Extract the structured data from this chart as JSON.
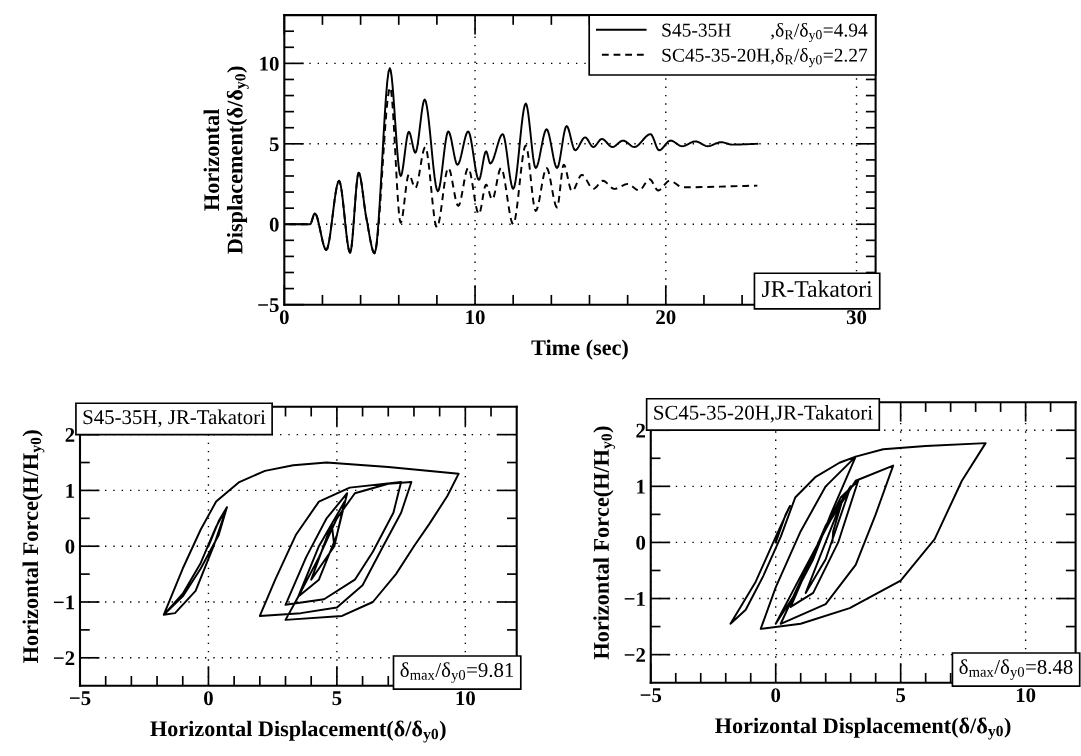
{
  "chart_data": [
    {
      "type": "line",
      "xlabel": "Time (sec)",
      "ylabel": "Horizontal\nDisplacement(δ/δ$_{y0}$)",
      "xlim": [
        0,
        31
      ],
      "ylim": [
        -5,
        13
      ],
      "xticks": [
        0,
        {
          "value": 2,
          "label": null
        },
        {
          "value": 4,
          "label": null
        },
        {
          "value": 6,
          "label": null
        },
        {
          "value": 8,
          "label": null
        },
        10,
        {
          "value": 12,
          "label": null
        },
        {
          "value": 14,
          "label": null
        },
        {
          "value": 16,
          "label": null
        },
        {
          "value": 18,
          "label": null
        },
        20,
        {
          "value": 22,
          "label": null
        },
        {
          "value": 24,
          "label": null
        },
        {
          "value": 26,
          "label": null
        },
        {
          "value": 28,
          "label": null
        },
        30
      ],
      "yticks": [
        -5,
        {
          "value": -4,
          "label": null
        },
        {
          "value": -3,
          "label": null
        },
        {
          "value": -2,
          "label": null
        },
        {
          "value": -1,
          "label": null
        },
        0,
        {
          "value": 1,
          "label": null
        },
        {
          "value": 2,
          "label": null
        },
        {
          "value": 3,
          "label": null
        },
        {
          "value": 4,
          "label": null
        },
        5,
        {
          "value": 6,
          "label": null
        },
        {
          "value": 7,
          "label": null
        },
        {
          "value": 8,
          "label": null
        },
        {
          "value": 9,
          "label": null
        },
        10,
        {
          "value": 11,
          "label": null
        },
        {
          "value": 12,
          "label": null
        }
      ],
      "grid": true,
      "legend": "top right",
      "annotations": [
        "JR-Takatori"
      ],
      "series": [
        {
          "name": "S45-35H        ,δ$_{R}$/δ$_{y0}$=4.94",
          "color": "#000000",
          "line_style": "solid",
          "x": [
            0,
            1.35,
            1.6,
            2.2,
            2.87,
            3.45,
            3.9,
            4.3,
            4.73,
            5.53,
            6.1,
            6.53,
            6.87,
            7.36,
            8.05,
            8.6,
            9.08,
            9.64,
            10.2,
            10.58,
            10.8,
            11.45,
            12.0,
            12.66,
            13.18,
            13.75,
            14.3,
            14.8,
            15.25,
            15.77,
            16.2,
            16.65,
            17.2,
            17.76,
            18.35,
            19.2,
            19.65,
            20.25,
            20.86,
            21.55,
            22.2,
            22.9,
            23.5,
            24.8
          ],
          "values": [
            0,
            0,
            0.67,
            -1.6,
            2.7,
            -1.77,
            3.2,
            0.4,
            -1.8,
            9.7,
            3.0,
            5.75,
            4.45,
            7.75,
            2.05,
            5.77,
            3.7,
            5.77,
            2.76,
            4.53,
            3.78,
            5.6,
            2.2,
            7.5,
            3.5,
            5.9,
            3.5,
            6.1,
            4.6,
            5.4,
            4.8,
            5.3,
            4.8,
            5.2,
            4.8,
            5.6,
            4.6,
            5.2,
            4.85,
            5.15,
            4.85,
            5.1,
            4.95,
            5.0
          ]
        },
        {
          "name": "SC45-35-20H,δ$_{R}$/δ$_{y0}$=2.27",
          "color": "#000000",
          "line_style": "dashed",
          "x": [
            0,
            1.35,
            1.6,
            2.2,
            2.87,
            3.45,
            3.9,
            4.3,
            4.73,
            5.55,
            6.1,
            6.53,
            6.87,
            7.39,
            8.0,
            8.6,
            9.12,
            9.64,
            10.2,
            10.58,
            10.9,
            11.36,
            12.0,
            12.66,
            13.18,
            13.75,
            14.3,
            14.65,
            15.08,
            15.6,
            16.2,
            16.7,
            17.3,
            18.0,
            18.6,
            19.15,
            19.6,
            20.2,
            20.9,
            24.8
          ],
          "values": [
            0,
            0,
            0.67,
            -1.6,
            2.7,
            -1.77,
            3.2,
            0.4,
            -1.8,
            8.5,
            0.1,
            3.1,
            2.25,
            4.8,
            -0.2,
            3.5,
            1.14,
            3.5,
            0.63,
            2.46,
            1.54,
            3.5,
            0,
            4.9,
            0.83,
            3.5,
            1.04,
            3.7,
            2.05,
            3.07,
            2.2,
            2.7,
            2.2,
            2.5,
            2.1,
            2.8,
            2.1,
            2.7,
            2.3,
            2.4
          ]
        }
      ]
    },
    {
      "type": "line",
      "xlabel": "Horizontal Displacement(δ/δ$_{y0}$)",
      "ylabel": "Horizontal Force(H/H$_{y0}$)",
      "xlim": [
        -5,
        12
      ],
      "ylim": [
        -2.5,
        2.5
      ],
      "xticks": [
        -5,
        {
          "value": -4,
          "label": null
        },
        {
          "value": -3,
          "label": null
        },
        {
          "value": -2,
          "label": null
        },
        {
          "value": -1,
          "label": null
        },
        0,
        {
          "value": 1,
          "label": null
        },
        {
          "value": 2,
          "label": null
        },
        {
          "value": 3,
          "label": null
        },
        {
          "value": 4,
          "label": null
        },
        5,
        {
          "value": 6,
          "label": null
        },
        {
          "value": 7,
          "label": null
        },
        {
          "value": 8,
          "label": null
        },
        {
          "value": 9,
          "label": null
        },
        10,
        {
          "value": 11,
          "label": null
        }
      ],
      "yticks": [
        -2,
        {
          "value": -1.5,
          "label": null
        },
        -1,
        {
          "value": -0.5,
          "label": null
        },
        0,
        {
          "value": 0.5,
          "label": null
        },
        1,
        {
          "value": 1.5,
          "label": null
        },
        2
      ],
      "grid": true,
      "annotations": [
        "S45-35H, JR-Takatori",
        "δ$_{max}$/δ$_{y0}$=9.81"
      ],
      "series": [
        {
          "color": "#000000",
          "x": [
            0,
            0.4,
            0.72,
            0.4,
            -0.3,
            -1.0,
            -1.74,
            -1.3,
            -0.5,
            0.2,
            0.72,
            0.3,
            -0.3,
            -1.0,
            -1.74,
            -1.0,
            -0.3,
            0.3,
            1.2,
            2.2,
            3.3,
            4.6,
            7.0,
            9.74,
            9.3,
            8.6,
            8.0,
            7.3,
            6.4,
            5.2,
            3.0,
            3.5,
            4.3,
            5.0,
            5.7,
            7.0,
            7.9,
            7.5,
            6.8,
            6.0,
            5.0,
            3.6,
            2.0,
            2.6,
            3.4,
            4.3,
            5.5,
            7.5,
            7.2,
            6.4,
            5.7,
            4.5,
            3.0,
            3.8,
            4.6,
            5.4,
            5.0,
            4.3,
            3.5,
            4.3,
            5.3,
            4.9,
            4.0,
            4.8,
            4.9
          ],
          "values": [
            0,
            0.45,
            0.7,
            0.2,
            -0.4,
            -0.9,
            -1.23,
            -1.2,
            -0.8,
            0,
            0.7,
            0.35,
            -0.3,
            -0.85,
            -1.23,
            -0.4,
            0.3,
            0.8,
            1.15,
            1.35,
            1.45,
            1.5,
            1.42,
            1.3,
            0.9,
            0.4,
            0,
            -0.5,
            -1.0,
            -1.25,
            -1.32,
            -0.9,
            -0.2,
            0.5,
            0.95,
            1.12,
            1.15,
            0.6,
            0,
            -0.7,
            -1.1,
            -1.2,
            -1.25,
            -0.6,
            0.2,
            0.8,
            1.05,
            1.15,
            0.6,
            -0.1,
            -0.6,
            -0.95,
            -1.05,
            -0.2,
            0.5,
            0.95,
            0.2,
            -0.6,
            -0.9,
            0,
            0.8,
            0,
            -0.6,
            0.4,
            0
          ]
        }
      ]
    },
    {
      "type": "line",
      "xlabel": "Horizontal Displacement(δ/δ$_{y0}$)",
      "ylabel": "Horizontal Force(H/H$_{y0}$)",
      "xlim": [
        -5,
        12
      ],
      "ylim": [
        -2.5,
        2.5
      ],
      "xticks": [
        -5,
        {
          "value": -4,
          "label": null
        },
        {
          "value": -3,
          "label": null
        },
        {
          "value": -2,
          "label": null
        },
        {
          "value": -1,
          "label": null
        },
        0,
        {
          "value": 1,
          "label": null
        },
        {
          "value": 2,
          "label": null
        },
        {
          "value": 3,
          "label": null
        },
        {
          "value": 4,
          "label": null
        },
        5,
        {
          "value": 6,
          "label": null
        },
        {
          "value": 7,
          "label": null
        },
        {
          "value": 8,
          "label": null
        },
        {
          "value": 9,
          "label": null
        },
        10,
        {
          "value": 11,
          "label": null
        }
      ],
      "yticks": [
        -2,
        {
          "value": -1.5,
          "label": null
        },
        -1,
        {
          "value": -0.5,
          "label": null
        },
        0,
        {
          "value": 0.5,
          "label": null
        },
        1,
        {
          "value": 1.5,
          "label": null
        },
        2
      ],
      "grid": true,
      "annotations": [
        "SC45-35-20H,JR-Takatori",
        "δ$_{max}$/δ$_{y0}$=8.48"
      ],
      "series": [
        {
          "color": "#000000",
          "x": [
            0,
            0.4,
            0.57,
            0,
            -0.8,
            -1.81,
            -1.2,
            -0.5,
            0.2,
            0.78,
            1.6,
            2.55,
            3.2,
            4.3,
            6.0,
            8.4,
            7.45,
            6.36,
            5.0,
            2.96,
            1.0,
            -0.6,
            0,
            1.0,
            2.0,
            3.2,
            2.2,
            1.5,
            0.8,
            0,
            1.0,
            2.2,
            3.2,
            4.7,
            4.0,
            3.2,
            2.0,
            0.2,
            1.5,
            2.6,
            3.3,
            2.5,
            1.5,
            0.6,
            2.0,
            3.0,
            2.0,
            1.2,
            2.7,
            2.3,
            2.27
          ],
          "values": [
            0,
            0.5,
            0.65,
            0.1,
            -0.7,
            -1.45,
            -1.2,
            -0.6,
            0.1,
            0.8,
            1.17,
            1.42,
            1.53,
            1.66,
            1.72,
            1.77,
            1.1,
            0.06,
            -0.68,
            -1.17,
            -1.45,
            -1.54,
            -0.8,
            0.2,
            1.0,
            1.53,
            0.5,
            -0.3,
            -0.9,
            -1.45,
            -0.6,
            0.4,
            1.1,
            1.37,
            0.5,
            -0.4,
            -1.1,
            -1.45,
            -0.2,
            0.8,
            1.1,
            0,
            -0.9,
            -1.15,
            0.3,
            1.0,
            -0.3,
            -0.9,
            0.8,
            0.2,
            0
          ]
        }
      ]
    }
  ]
}
